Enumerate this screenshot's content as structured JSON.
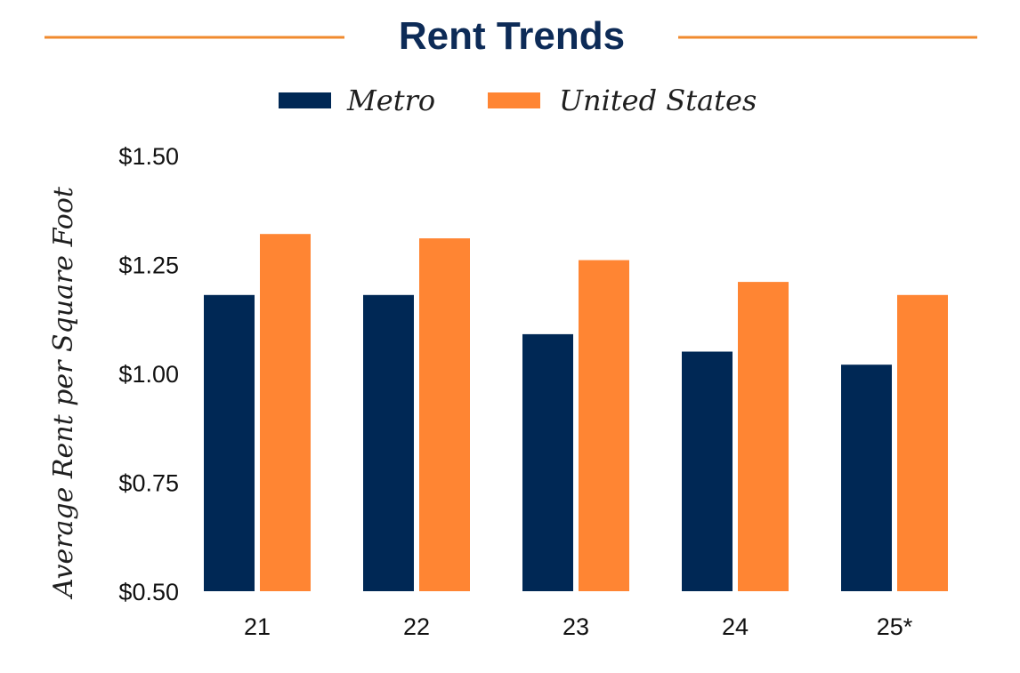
{
  "chart_data": {
    "type": "bar",
    "title": "Rent Trends",
    "ylabel": "Average Rent per Square Foot",
    "xlabel": "",
    "categories": [
      "21",
      "22",
      "23",
      "24",
      "25*"
    ],
    "series": [
      {
        "name": "Metro",
        "color": "#002855",
        "values": [
          1.18,
          1.18,
          1.09,
          1.05,
          1.02
        ]
      },
      {
        "name": "United States",
        "color": "#ff8533",
        "values": [
          1.32,
          1.31,
          1.26,
          1.21,
          1.18
        ]
      }
    ],
    "ylim": [
      0.5,
      1.5
    ],
    "yticks": [
      0.5,
      0.75,
      1.0,
      1.25,
      1.5
    ],
    "ytick_labels": [
      "$0.50",
      "$0.75",
      "$1.00",
      "$1.25",
      "$1.50"
    ],
    "grid": false,
    "legend_position": "top-center",
    "accent_color": "#f08a2e",
    "title_color": "#0d2b57"
  }
}
